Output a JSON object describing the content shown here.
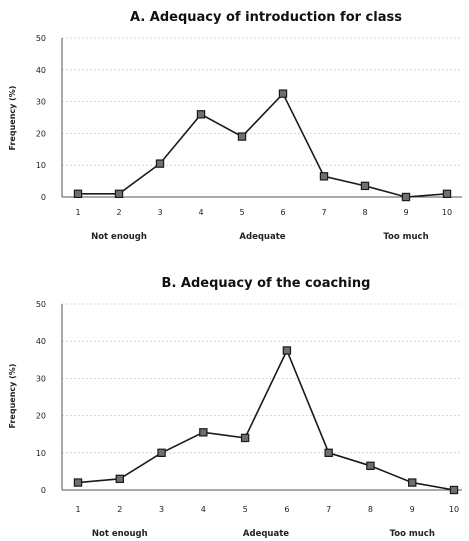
{
  "chart_data": [
    {
      "type": "line",
      "title": "A. Adequacy of introduction for class",
      "ylabel": "Frequency (%)",
      "xlabel": "",
      "x": [
        1,
        2,
        3,
        4,
        5,
        6,
        7,
        8,
        9,
        10
      ],
      "values": [
        1,
        1,
        10.5,
        26,
        19,
        32.5,
        6.5,
        3.5,
        0,
        1
      ],
      "ylim": [
        0,
        50
      ],
      "yticks": [
        0,
        10,
        20,
        30,
        40,
        50
      ],
      "grid": true,
      "category_labels": [
        {
          "x": 2,
          "text": "Not enough"
        },
        {
          "x": 5.5,
          "text": "Adequate"
        },
        {
          "x": 9,
          "text": "Too much"
        }
      ]
    },
    {
      "type": "line",
      "title": "B. Adequacy of the coaching",
      "ylabel": "Frequency (%)",
      "xlabel": "",
      "x": [
        1,
        2,
        3,
        4,
        5,
        6,
        7,
        8,
        9,
        10
      ],
      "values": [
        2,
        3,
        10,
        15.5,
        14,
        37.5,
        10,
        6.5,
        2,
        0
      ],
      "ylim": [
        0,
        50
      ],
      "yticks": [
        0,
        10,
        20,
        30,
        40,
        50
      ],
      "grid": true,
      "category_labels": [
        {
          "x": 2,
          "text": "Not enough"
        },
        {
          "x": 5.5,
          "text": "Adequate"
        },
        {
          "x": 9,
          "text": "Too much"
        }
      ]
    }
  ]
}
